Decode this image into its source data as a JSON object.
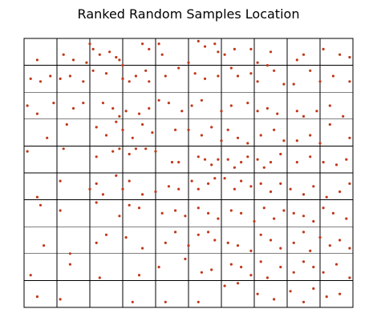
{
  "chart_data": {
    "type": "scatter",
    "title": "Ranked Random Samples Location",
    "xlabel": "",
    "ylabel": "",
    "xlim": [
      0,
      10
    ],
    "ylim": [
      0,
      10
    ],
    "grid": true,
    "grid_cells": [
      10,
      10
    ],
    "axis_ticks": "none",
    "point_color": "#c0391b",
    "series": [
      {
        "values": [
          [
            0.4,
            9.2
          ],
          [
            1.2,
            9.4
          ],
          [
            1.5,
            9.2
          ],
          [
            1.9,
            9.1
          ],
          [
            2.0,
            9.8
          ],
          [
            2.1,
            9.6
          ],
          [
            2.3,
            9.4
          ],
          [
            2.6,
            9.5
          ],
          [
            2.8,
            9.3
          ],
          [
            2.9,
            9.2
          ],
          [
            3.0,
            9.0
          ],
          [
            3.6,
            9.8
          ],
          [
            3.8,
            9.6
          ],
          [
            4.1,
            9.8
          ],
          [
            4.2,
            9.4
          ],
          [
            5.0,
            9.1
          ],
          [
            5.3,
            9.9
          ],
          [
            5.5,
            9.7
          ],
          [
            5.8,
            9.8
          ],
          [
            5.9,
            9.5
          ],
          [
            6.1,
            9.4
          ],
          [
            6.4,
            9.6
          ],
          [
            6.9,
            9.6
          ],
          [
            7.1,
            9.1
          ],
          [
            7.4,
            9.0
          ],
          [
            7.5,
            9.5
          ],
          [
            8.3,
            9.2
          ],
          [
            8.5,
            9.4
          ],
          [
            9.1,
            9.6
          ],
          [
            9.6,
            9.4
          ],
          [
            9.9,
            9.3
          ],
          [
            0.2,
            8.5
          ],
          [
            0.5,
            8.4
          ],
          [
            0.8,
            8.6
          ],
          [
            1.1,
            8.5
          ],
          [
            1.4,
            8.6
          ],
          [
            1.8,
            8.4
          ],
          [
            2.1,
            8.8
          ],
          [
            2.5,
            8.7
          ],
          [
            3.0,
            8.5
          ],
          [
            3.2,
            8.4
          ],
          [
            3.4,
            8.6
          ],
          [
            3.7,
            8.8
          ],
          [
            3.8,
            8.4
          ],
          [
            4.3,
            8.6
          ],
          [
            4.7,
            8.9
          ],
          [
            5.2,
            8.7
          ],
          [
            5.5,
            8.5
          ],
          [
            5.9,
            8.6
          ],
          [
            6.3,
            8.9
          ],
          [
            6.5,
            8.6
          ],
          [
            6.9,
            8.7
          ],
          [
            7.1,
            8.4
          ],
          [
            7.6,
            8.8
          ],
          [
            7.9,
            8.3
          ],
          [
            8.2,
            8.3
          ],
          [
            8.7,
            8.8
          ],
          [
            9.0,
            8.4
          ],
          [
            9.4,
            8.6
          ],
          [
            9.9,
            8.4
          ],
          [
            0.1,
            7.5
          ],
          [
            0.4,
            7.2
          ],
          [
            0.9,
            7.6
          ],
          [
            1.5,
            7.4
          ],
          [
            1.8,
            7.6
          ],
          [
            2.4,
            7.6
          ],
          [
            2.7,
            7.4
          ],
          [
            2.9,
            7.1
          ],
          [
            3.1,
            7.3
          ],
          [
            3.5,
            7.2
          ],
          [
            3.8,
            7.4
          ],
          [
            4.1,
            7.7
          ],
          [
            4.4,
            7.6
          ],
          [
            4.8,
            7.3
          ],
          [
            5.1,
            7.5
          ],
          [
            5.4,
            7.7
          ],
          [
            6.0,
            7.3
          ],
          [
            6.3,
            7.5
          ],
          [
            6.8,
            7.6
          ],
          [
            7.1,
            7.3
          ],
          [
            7.4,
            7.4
          ],
          [
            7.7,
            7.2
          ],
          [
            8.3,
            7.3
          ],
          [
            8.5,
            7.1
          ],
          [
            8.9,
            7.3
          ],
          [
            9.3,
            7.5
          ],
          [
            9.7,
            7.1
          ],
          [
            0.7,
            6.3
          ],
          [
            1.3,
            6.8
          ],
          [
            2.2,
            6.7
          ],
          [
            2.5,
            6.4
          ],
          [
            2.8,
            6.9
          ],
          [
            3.0,
            6.6
          ],
          [
            3.3,
            6.3
          ],
          [
            3.6,
            6.8
          ],
          [
            3.9,
            6.5
          ],
          [
            4.6,
            6.6
          ],
          [
            5.0,
            6.6
          ],
          [
            5.4,
            6.4
          ],
          [
            5.7,
            6.7
          ],
          [
            6.0,
            6.2
          ],
          [
            6.2,
            6.6
          ],
          [
            6.5,
            6.3
          ],
          [
            6.8,
            6.1
          ],
          [
            7.2,
            6.4
          ],
          [
            7.6,
            6.6
          ],
          [
            7.9,
            6.2
          ],
          [
            8.3,
            6.2
          ],
          [
            8.7,
            6.4
          ],
          [
            9.0,
            6.1
          ],
          [
            9.3,
            6.8
          ],
          [
            9.9,
            6.3
          ],
          [
            0.1,
            5.8
          ],
          [
            1.2,
            5.9
          ],
          [
            2.2,
            5.6
          ],
          [
            2.7,
            5.8
          ],
          [
            2.9,
            5.9
          ],
          [
            3.2,
            5.7
          ],
          [
            3.4,
            5.9
          ],
          [
            3.7,
            5.9
          ],
          [
            4.0,
            5.8
          ],
          [
            4.5,
            5.4
          ],
          [
            4.7,
            5.4
          ],
          [
            5.3,
            5.6
          ],
          [
            5.5,
            5.5
          ],
          [
            5.7,
            5.3
          ],
          [
            5.9,
            5.5
          ],
          [
            6.2,
            5.5
          ],
          [
            6.4,
            5.2
          ],
          [
            6.6,
            5.4
          ],
          [
            6.8,
            5.6
          ],
          [
            7.1,
            5.5
          ],
          [
            7.3,
            5.2
          ],
          [
            7.5,
            5.4
          ],
          [
            7.8,
            5.7
          ],
          [
            8.3,
            5.4
          ],
          [
            8.7,
            5.6
          ],
          [
            9.1,
            5.4
          ],
          [
            9.5,
            5.3
          ],
          [
            9.8,
            5.5
          ],
          [
            0.4,
            4.1
          ],
          [
            1.1,
            4.7
          ],
          [
            2.0,
            4.4
          ],
          [
            2.2,
            4.6
          ],
          [
            2.4,
            4.2
          ],
          [
            2.8,
            4.9
          ],
          [
            3.0,
            4.4
          ],
          [
            3.2,
            4.7
          ],
          [
            3.6,
            4.2
          ],
          [
            4.0,
            4.3
          ],
          [
            4.4,
            4.5
          ],
          [
            4.7,
            4.4
          ],
          [
            5.1,
            4.7
          ],
          [
            5.3,
            4.4
          ],
          [
            5.6,
            4.6
          ],
          [
            5.8,
            4.8
          ],
          [
            6.1,
            4.8
          ],
          [
            6.4,
            4.4
          ],
          [
            6.6,
            4.7
          ],
          [
            6.9,
            4.5
          ],
          [
            7.2,
            4.6
          ],
          [
            7.5,
            4.3
          ],
          [
            7.8,
            4.6
          ],
          [
            8.1,
            4.4
          ],
          [
            8.5,
            4.2
          ],
          [
            8.8,
            4.5
          ],
          [
            9.2,
            4.1
          ],
          [
            9.6,
            4.3
          ],
          [
            9.9,
            4.6
          ],
          [
            0.5,
            3.8
          ],
          [
            1.1,
            3.6
          ],
          [
            2.2,
            3.9
          ],
          [
            2.9,
            3.4
          ],
          [
            3.2,
            3.8
          ],
          [
            3.5,
            3.7
          ],
          [
            4.2,
            3.5
          ],
          [
            4.6,
            3.6
          ],
          [
            4.9,
            3.4
          ],
          [
            5.3,
            3.7
          ],
          [
            5.6,
            3.5
          ],
          [
            5.9,
            3.3
          ],
          [
            6.3,
            3.6
          ],
          [
            6.6,
            3.5
          ],
          [
            7.0,
            3.2
          ],
          [
            7.3,
            3.7
          ],
          [
            7.6,
            3.3
          ],
          [
            7.9,
            3.6
          ],
          [
            8.2,
            3.5
          ],
          [
            8.5,
            3.4
          ],
          [
            8.8,
            3.2
          ],
          [
            9.1,
            3.7
          ],
          [
            9.4,
            3.5
          ],
          [
            9.8,
            3.3
          ],
          [
            0.6,
            2.3
          ],
          [
            1.4,
            2.0
          ],
          [
            2.2,
            2.4
          ],
          [
            2.5,
            2.7
          ],
          [
            3.1,
            2.6
          ],
          [
            3.6,
            2.2
          ],
          [
            4.3,
            2.4
          ],
          [
            4.6,
            2.8
          ],
          [
            5.0,
            2.3
          ],
          [
            5.3,
            2.7
          ],
          [
            5.6,
            2.8
          ],
          [
            5.8,
            2.5
          ],
          [
            6.2,
            2.4
          ],
          [
            6.5,
            2.3
          ],
          [
            6.9,
            2.1
          ],
          [
            7.2,
            2.7
          ],
          [
            7.5,
            2.5
          ],
          [
            7.8,
            2.2
          ],
          [
            8.2,
            2.4
          ],
          [
            8.5,
            2.8
          ],
          [
            8.7,
            2.1
          ],
          [
            9.0,
            2.6
          ],
          [
            9.3,
            2.3
          ],
          [
            9.6,
            2.5
          ],
          [
            9.9,
            2.2
          ],
          [
            0.2,
            1.2
          ],
          [
            1.4,
            1.6
          ],
          [
            2.3,
            1.1
          ],
          [
            3.5,
            1.2
          ],
          [
            4.1,
            1.5
          ],
          [
            4.9,
            1.8
          ],
          [
            5.4,
            1.3
          ],
          [
            5.7,
            1.4
          ],
          [
            6.3,
            1.6
          ],
          [
            6.6,
            1.5
          ],
          [
            6.9,
            1.2
          ],
          [
            7.2,
            1.7
          ],
          [
            7.4,
            1.1
          ],
          [
            7.8,
            1.5
          ],
          [
            8.2,
            1.3
          ],
          [
            8.5,
            1.7
          ],
          [
            8.8,
            1.5
          ],
          [
            9.1,
            1.3
          ],
          [
            9.5,
            1.6
          ],
          [
            9.9,
            1.1
          ],
          [
            0.4,
            0.4
          ],
          [
            1.1,
            0.3
          ],
          [
            3.3,
            0.2
          ],
          [
            4.3,
            0.2
          ],
          [
            5.3,
            0.2
          ],
          [
            6.1,
            0.8
          ],
          [
            6.5,
            0.9
          ],
          [
            7.1,
            0.5
          ],
          [
            7.6,
            0.3
          ],
          [
            8.1,
            0.6
          ],
          [
            8.5,
            0.2
          ],
          [
            8.8,
            0.7
          ],
          [
            9.2,
            0.4
          ],
          [
            9.6,
            0.5
          ]
        ]
      }
    ]
  }
}
